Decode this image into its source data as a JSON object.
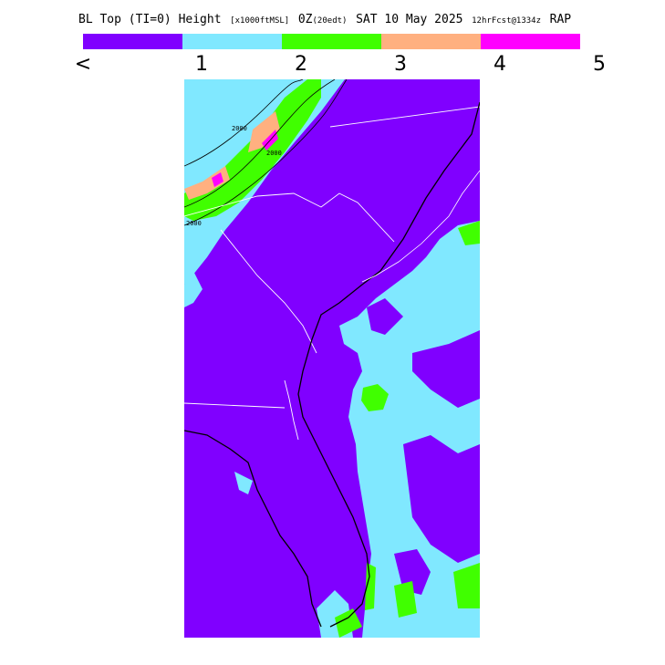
{
  "title": {
    "part1": "BL Top (TI=0) Height",
    "units": "[x1000ftMSL]",
    "part2": "0Z",
    "local": "(20edt)",
    "part3": "SAT 10 May 2025",
    "fcst": "12hrFcst@1334z",
    "part4": "RAP"
  },
  "legend": {
    "colors": [
      "#8000ff",
      "#80e8ff",
      "#40ff00",
      "#ffb080",
      "#ff00ff"
    ],
    "ticks": [
      "<",
      "1",
      "2",
      "3",
      "4",
      "5"
    ]
  },
  "map": {
    "contour_label": "2000",
    "colors": {
      "low": "#8000ff",
      "mid": "#80e8ff",
      "high": "#40ff00",
      "higher": "#ffb080",
      "highest": "#ff00ff",
      "border": "#ffffff",
      "coast": "#000000"
    }
  }
}
